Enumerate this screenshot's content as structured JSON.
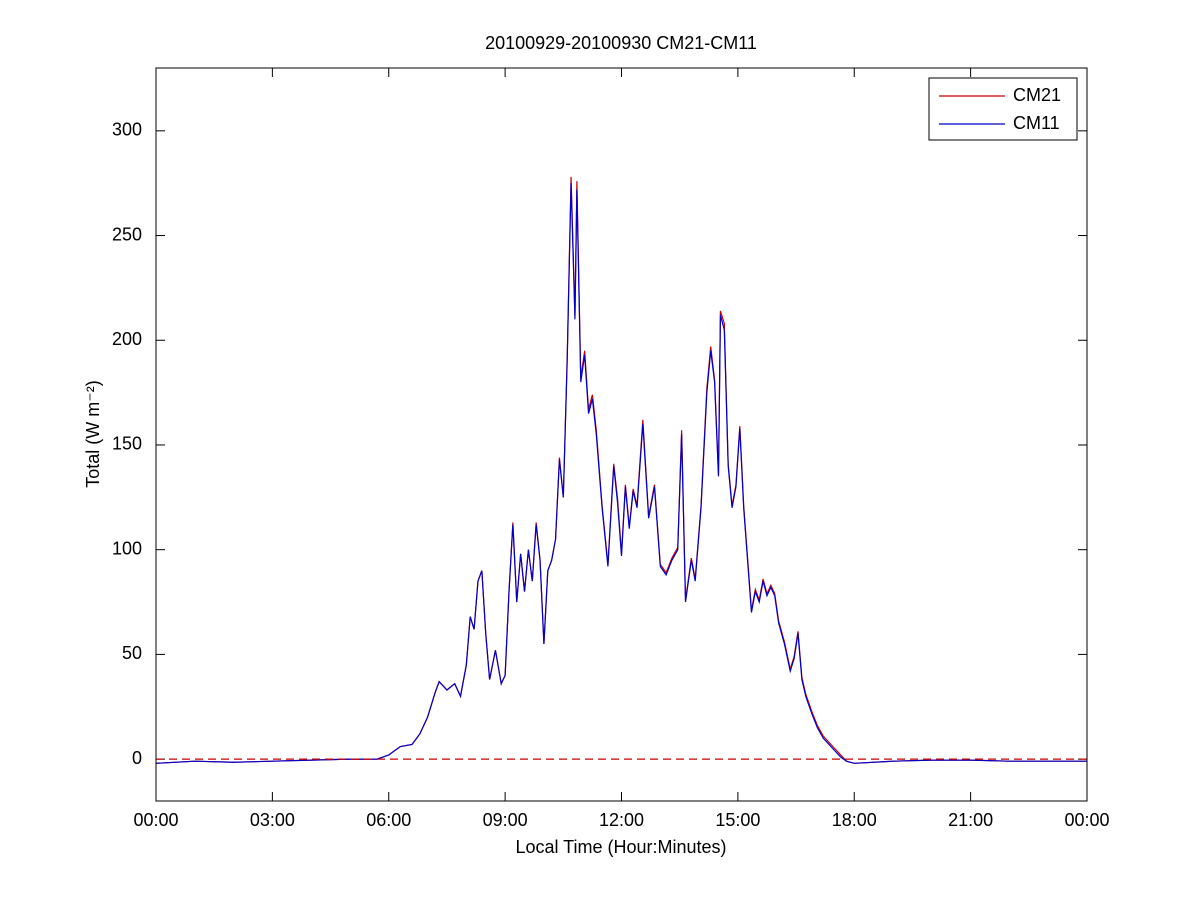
{
  "chart_data": {
    "type": "line",
    "title": "20100929-20100930 CM21-CM11",
    "x_label": "Local Time (Hour:Minutes)",
    "y_label": "Total (W m⁻²)",
    "x": [
      0,
      1,
      2,
      3,
      4,
      5,
      5.7,
      6,
      6.3,
      6.6,
      6.8,
      7.0,
      7.2,
      7.3,
      7.5,
      7.7,
      7.85,
      8.0,
      8.1,
      8.2,
      8.3,
      8.4,
      8.5,
      8.6,
      8.75,
      8.9,
      9.0,
      9.1,
      9.2,
      9.3,
      9.4,
      9.5,
      9.6,
      9.7,
      9.8,
      9.9,
      10.0,
      10.1,
      10.2,
      10.3,
      10.4,
      10.5,
      10.6,
      10.7,
      10.8,
      10.85,
      10.95,
      11.05,
      11.15,
      11.25,
      11.35,
      11.5,
      11.65,
      11.8,
      11.9,
      12.0,
      12.1,
      12.2,
      12.3,
      12.4,
      12.55,
      12.7,
      12.85,
      13.0,
      13.15,
      13.3,
      13.45,
      13.55,
      13.65,
      13.8,
      13.9,
      14.05,
      14.2,
      14.3,
      14.4,
      14.5,
      14.55,
      14.65,
      14.75,
      14.85,
      14.95,
      15.05,
      15.15,
      15.25,
      15.35,
      15.45,
      15.55,
      15.65,
      15.75,
      15.85,
      15.95,
      16.05,
      16.2,
      16.35,
      16.45,
      16.55,
      16.65,
      16.75,
      16.9,
      17.05,
      17.2,
      17.35,
      17.5,
      17.65,
      17.8,
      18.0,
      19,
      20,
      21,
      22,
      23,
      24
    ],
    "series": [
      {
        "name": "CM21",
        "color": "#cc0000",
        "values": [
          -2,
          -1,
          -1.5,
          -1,
          -0.5,
          0,
          0,
          2,
          6,
          7,
          12,
          20,
          32,
          37,
          33,
          36,
          30,
          45,
          68,
          62,
          85,
          90,
          60,
          38,
          52,
          36,
          40,
          80,
          113,
          75,
          98,
          80,
          100,
          85,
          113,
          95,
          55,
          90,
          95,
          105,
          144,
          125,
          192,
          278,
          212,
          276,
          182,
          195,
          167,
          174,
          157,
          121,
          93,
          141,
          124,
          98,
          131,
          111,
          129,
          121,
          162,
          116,
          131,
          93,
          89,
          96,
          101,
          157,
          76,
          96,
          86,
          121,
          177,
          197,
          181,
          136,
          214,
          208,
          141,
          121,
          131,
          159,
          121,
          96,
          71,
          81,
          76,
          86,
          79,
          83,
          79,
          66,
          56,
          43,
          49,
          61,
          39,
          31,
          23,
          16,
          11,
          8,
          5,
          2,
          -1,
          -2,
          -1,
          -0.5,
          -0.5,
          -1,
          -1,
          -1
        ]
      },
      {
        "name": "CM11",
        "color": "#0000cc",
        "values": [
          -2,
          -1,
          -1.5,
          -1,
          -0.5,
          0,
          0,
          2,
          6,
          7,
          12,
          20,
          32,
          37,
          33,
          36,
          30,
          45,
          68,
          62,
          85,
          90,
          60,
          38,
          52,
          36,
          40,
          80,
          112,
          75,
          98,
          80,
          100,
          85,
          112,
          95,
          55,
          90,
          95,
          105,
          143,
          125,
          190,
          275,
          210,
          272,
          180,
          193,
          165,
          172,
          155,
          120,
          92,
          140,
          122,
          97,
          130,
          110,
          128,
          120,
          160,
          115,
          130,
          92,
          88,
          95,
          100,
          155,
          75,
          95,
          85,
          120,
          175,
          195,
          180,
          135,
          212,
          205,
          140,
          120,
          130,
          158,
          120,
          95,
          70,
          80,
          75,
          85,
          78,
          82,
          78,
          65,
          55,
          42,
          48,
          60,
          38,
          30,
          22,
          15,
          10,
          7,
          4,
          1,
          -1,
          -2,
          -1,
          -0.5,
          -0.5,
          -1,
          -1,
          -1
        ]
      }
    ],
    "xlim": [
      0,
      24
    ],
    "xticks": [
      {
        "value": 0,
        "label": "00:00"
      },
      {
        "value": 3,
        "label": "03:00"
      },
      {
        "value": 6,
        "label": "06:00"
      },
      {
        "value": 9,
        "label": "09:00"
      },
      {
        "value": 12,
        "label": "12:00"
      },
      {
        "value": 15,
        "label": "15:00"
      },
      {
        "value": 18,
        "label": "18:00"
      },
      {
        "value": 21,
        "label": "21:00"
      },
      {
        "value": 24,
        "label": "00:00"
      }
    ],
    "ylim": [
      -20,
      330
    ],
    "yticks": [
      0,
      50,
      100,
      150,
      200,
      250,
      300
    ],
    "reference_line": {
      "value": 0,
      "color": "#cc0000",
      "style": "dashed"
    },
    "legend": "northeast",
    "grid": false
  }
}
